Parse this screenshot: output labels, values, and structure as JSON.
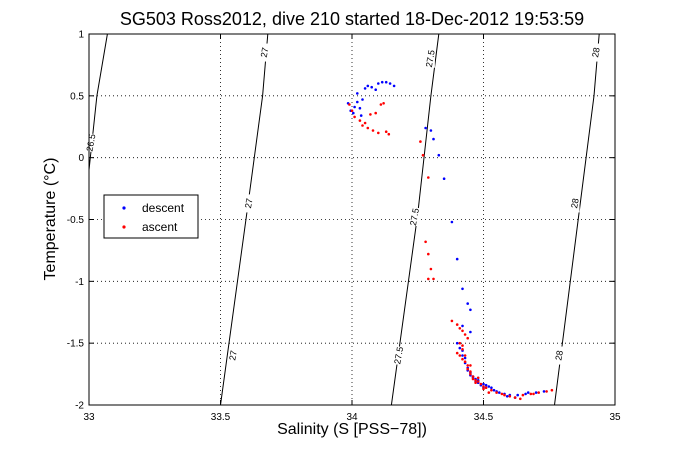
{
  "chart_data": {
    "type": "scatter",
    "title": "SG503 Ross2012, dive 210 started 18-Dec-2012 19:53:59",
    "xlabel": "Salinity (S [PSS−78])",
    "ylabel": "Temperature (°C)",
    "xlim": [
      33,
      35
    ],
    "ylim": [
      -2,
      1
    ],
    "xticks": [
      33,
      33.5,
      34,
      34.5,
      35
    ],
    "xtick_labels": [
      "33",
      "33.5",
      "34",
      "34.5",
      "35"
    ],
    "yticks": [
      -2,
      -1.5,
      -1,
      -0.5,
      0,
      0.5,
      1
    ],
    "ytick_labels": [
      "-2",
      "-1.5",
      "-1",
      "-0.5",
      "0",
      "0.5",
      "1"
    ],
    "grid": true,
    "legend_position": "middle-left",
    "series": [
      {
        "name": "descent",
        "color": "#0000ff",
        "marker": "dot",
        "points": [
          [
            33.985,
            0.44
          ],
          [
            33.995,
            0.38
          ],
          [
            34.005,
            0.36
          ],
          [
            34.01,
            0.41
          ],
          [
            34.02,
            0.45
          ],
          [
            34.03,
            0.4
          ],
          [
            34.04,
            0.47
          ],
          [
            34.05,
            0.56
          ],
          [
            34.06,
            0.58
          ],
          [
            34.075,
            0.57
          ],
          [
            34.09,
            0.55
          ],
          [
            34.1,
            0.6
          ],
          [
            34.115,
            0.61
          ],
          [
            34.13,
            0.61
          ],
          [
            34.145,
            0.6
          ],
          [
            34.16,
            0.58
          ],
          [
            34.02,
            0.52
          ],
          [
            34.035,
            0.34
          ],
          [
            34.28,
            0.24
          ],
          [
            34.3,
            0.22
          ],
          [
            34.31,
            0.15
          ],
          [
            34.33,
            0.02
          ],
          [
            34.35,
            -0.17
          ],
          [
            34.38,
            -0.52
          ],
          [
            34.4,
            -0.82
          ],
          [
            34.42,
            -1.06
          ],
          [
            34.44,
            -1.18
          ],
          [
            34.45,
            -1.23
          ],
          [
            34.42,
            -1.36
          ],
          [
            34.45,
            -1.41
          ],
          [
            34.4,
            -1.5
          ],
          [
            34.41,
            -1.54
          ],
          [
            34.42,
            -1.56
          ],
          [
            34.42,
            -1.6
          ],
          [
            34.43,
            -1.62
          ],
          [
            34.43,
            -1.66
          ],
          [
            34.44,
            -1.7
          ],
          [
            34.44,
            -1.72
          ],
          [
            34.45,
            -1.74
          ],
          [
            34.45,
            -1.76
          ],
          [
            34.46,
            -1.78
          ],
          [
            34.47,
            -1.79
          ],
          [
            34.48,
            -1.8
          ],
          [
            34.48,
            -1.82
          ],
          [
            34.5,
            -1.83
          ],
          [
            34.51,
            -1.84
          ],
          [
            34.52,
            -1.85
          ],
          [
            34.53,
            -1.86
          ],
          [
            34.54,
            -1.88
          ],
          [
            34.56,
            -1.9
          ],
          [
            34.58,
            -1.91
          ],
          [
            34.6,
            -1.92
          ],
          [
            34.63,
            -1.92
          ],
          [
            34.66,
            -1.91
          ],
          [
            34.7,
            -1.9
          ],
          [
            34.73,
            -1.89
          ],
          [
            34.5,
            -1.86
          ],
          [
            34.49,
            -1.84
          ],
          [
            34.47,
            -1.81
          ],
          [
            34.46,
            -1.77
          ],
          [
            34.55,
            -1.89
          ],
          [
            34.59,
            -1.93
          ],
          [
            34.62,
            -1.94
          ],
          [
            34.67,
            -1.9
          ]
        ]
      },
      {
        "name": "ascent",
        "color": "#ff0000",
        "marker": "dot",
        "points": [
          [
            33.99,
            0.43
          ],
          [
            34.0,
            0.38
          ],
          [
            34.01,
            0.33
          ],
          [
            34.03,
            0.3
          ],
          [
            34.05,
            0.28
          ],
          [
            34.06,
            0.24
          ],
          [
            34.08,
            0.22
          ],
          [
            34.1,
            0.2
          ],
          [
            34.13,
            0.21
          ],
          [
            34.14,
            0.19
          ],
          [
            34.07,
            0.35
          ],
          [
            34.09,
            0.36
          ],
          [
            34.11,
            0.43
          ],
          [
            34.12,
            0.44
          ],
          [
            34.04,
            0.26
          ],
          [
            34.26,
            0.13
          ],
          [
            34.27,
            0.02
          ],
          [
            34.29,
            -0.16
          ],
          [
            34.28,
            -0.68
          ],
          [
            34.29,
            -0.78
          ],
          [
            34.3,
            -0.9
          ],
          [
            34.29,
            -0.98
          ],
          [
            34.31,
            -0.98
          ],
          [
            34.38,
            -1.32
          ],
          [
            34.4,
            -1.35
          ],
          [
            34.41,
            -1.38
          ],
          [
            34.42,
            -1.4
          ],
          [
            34.43,
            -1.43
          ],
          [
            34.44,
            -1.46
          ],
          [
            34.41,
            -1.5
          ],
          [
            34.42,
            -1.55
          ],
          [
            34.4,
            -1.58
          ],
          [
            34.41,
            -1.6
          ],
          [
            34.42,
            -1.63
          ],
          [
            34.43,
            -1.65
          ],
          [
            34.44,
            -1.68
          ],
          [
            34.44,
            -1.71
          ],
          [
            34.45,
            -1.73
          ],
          [
            34.45,
            -1.75
          ],
          [
            34.46,
            -1.77
          ],
          [
            34.46,
            -1.79
          ],
          [
            34.47,
            -1.8
          ],
          [
            34.48,
            -1.81
          ],
          [
            34.49,
            -1.83
          ],
          [
            34.5,
            -1.85
          ],
          [
            34.51,
            -1.86
          ],
          [
            34.53,
            -1.88
          ],
          [
            34.55,
            -1.9
          ],
          [
            34.57,
            -1.91
          ],
          [
            34.6,
            -1.93
          ],
          [
            34.62,
            -1.94
          ],
          [
            34.65,
            -1.92
          ],
          [
            34.68,
            -1.91
          ],
          [
            34.71,
            -1.9
          ],
          [
            34.74,
            -1.89
          ],
          [
            34.76,
            -1.88
          ],
          [
            34.47,
            -1.82
          ],
          [
            34.5,
            -1.87
          ],
          [
            34.52,
            -1.9
          ],
          [
            34.58,
            -1.92
          ],
          [
            34.64,
            -1.95
          ],
          [
            34.69,
            -1.91
          ],
          [
            34.42,
            -1.52
          ],
          [
            34.43,
            -1.6
          ],
          [
            34.45,
            -1.68
          ],
          [
            34.48,
            -1.78
          ]
        ]
      }
    ],
    "contours": [
      {
        "label": "26.5",
        "points": [
          [
            33.0,
            -0.1
          ],
          [
            33.03,
            0.5
          ],
          [
            33.07,
            1.0
          ]
        ],
        "labels": [
          [
            33.01,
            0.12
          ]
        ]
      },
      {
        "label": "27",
        "points": [
          [
            33.5,
            -2.0
          ],
          [
            33.6,
            -0.45
          ],
          [
            33.66,
            0.5
          ],
          [
            33.68,
            1.0
          ]
        ],
        "labels": [
          [
            33.55,
            -1.6
          ],
          [
            33.61,
            -0.37
          ],
          [
            33.67,
            0.85
          ]
        ]
      },
      {
        "label": "27.5",
        "points": [
          [
            34.15,
            -2.0
          ],
          [
            34.25,
            -0.45
          ],
          [
            34.3,
            0.5
          ],
          [
            34.33,
            1.0
          ]
        ],
        "labels": [
          [
            34.18,
            -1.6
          ],
          [
            34.24,
            -0.48
          ],
          [
            34.3,
            0.8
          ]
        ]
      },
      {
        "label": "28",
        "points": [
          [
            34.77,
            -2.0
          ],
          [
            34.86,
            -0.5
          ],
          [
            34.92,
            0.5
          ],
          [
            34.94,
            1.0
          ]
        ],
        "labels": [
          [
            34.79,
            -1.6
          ],
          [
            34.85,
            -0.37
          ],
          [
            34.93,
            0.85
          ]
        ]
      }
    ]
  }
}
